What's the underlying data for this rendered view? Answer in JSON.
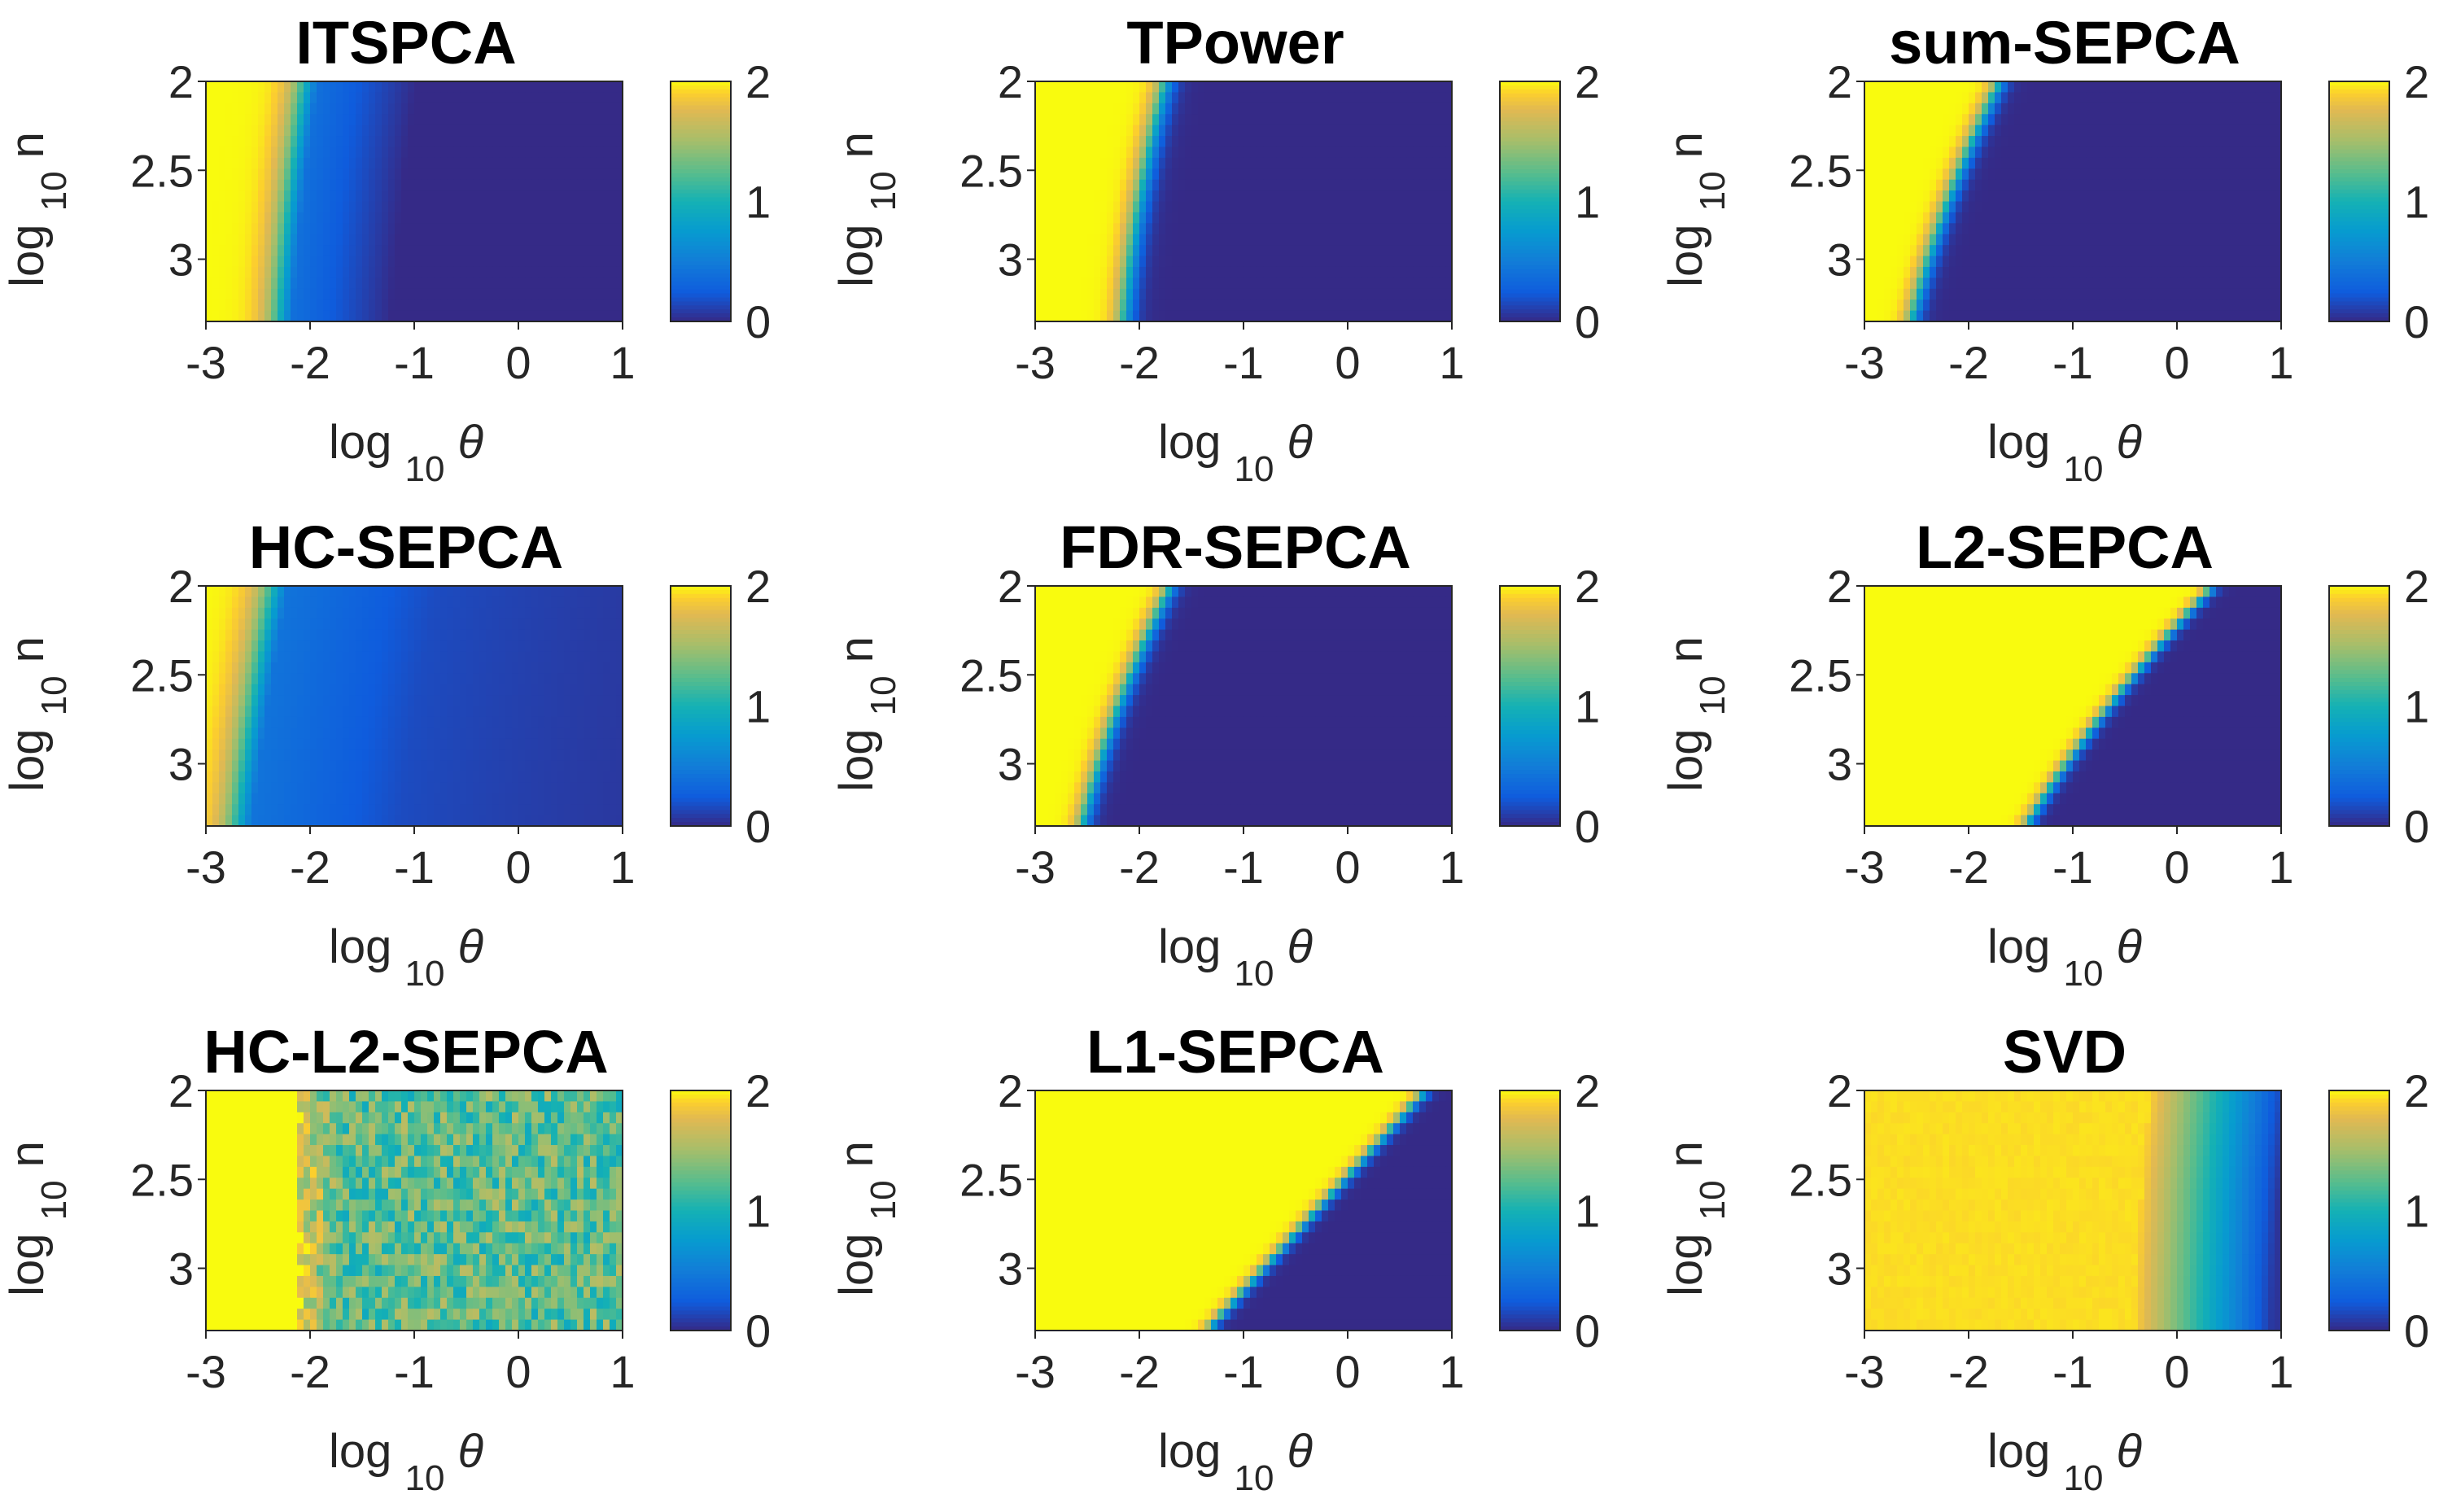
{
  "chart_data": [
    {
      "type": "heatmap",
      "title": "ITSPCA",
      "profile": "smooth",
      "boundary": [
        -2.3,
        -2.2,
        -2.05
      ],
      "transition_width": 0.3,
      "blue_tail": 0.4,
      "xlabel": "log 10 θ",
      "ylabel": "log 10 n",
      "xticks": [
        "-3",
        "-2",
        "-1",
        "0",
        "1"
      ],
      "xlim": [
        -3,
        1
      ],
      "yticks": [
        "2",
        "2.5",
        "3"
      ],
      "ylim": [
        2,
        3.35
      ],
      "colorbar": {
        "ticks": [
          "0",
          "1",
          "2"
        ],
        "range": [
          0,
          2
        ],
        "colormap": "parula"
      }
    },
    {
      "type": "heatmap",
      "title": "TPower",
      "profile": "sharp",
      "boundary": [
        -2.15,
        -2.0,
        -1.75
      ],
      "transition_width": 0.18,
      "xlabel": "log 10 θ",
      "ylabel": "log 10 n",
      "xticks": [
        "-3",
        "-2",
        "-1",
        "0",
        "1"
      ],
      "xlim": [
        -3,
        1
      ],
      "yticks": [
        "2",
        "2.5",
        "3"
      ],
      "ylim": [
        2,
        3.35
      ],
      "colorbar": {
        "ticks": [
          "0",
          "1",
          "2"
        ],
        "range": [
          0,
          2
        ],
        "colormap": "parula"
      }
    },
    {
      "type": "heatmap",
      "title": "sum-SEPCA",
      "profile": "sharp",
      "boundary": [
        -2.55,
        -2.2,
        -1.7
      ],
      "transition_width": 0.15,
      "xlabel": "log 10 θ",
      "ylabel": "log 10 n",
      "xticks": [
        "-3",
        "-2",
        "-1",
        "0",
        "1"
      ],
      "xlim": [
        -3,
        1
      ],
      "yticks": [
        "2",
        "2.5",
        "3"
      ],
      "ylim": [
        2,
        3.35
      ],
      "colorbar": {
        "ticks": [
          "0",
          "1",
          "2"
        ],
        "range": [
          0,
          2
        ],
        "colormap": "parula"
      }
    },
    {
      "type": "heatmap",
      "title": "HC-SEPCA",
      "profile": "hc",
      "boundary": [
        -2.7,
        -2.55,
        -2.35
      ],
      "transition_width": 0.35,
      "blue_tail": 0.9,
      "xlabel": "log 10 θ",
      "ylabel": "log 10 n",
      "xticks": [
        "-3",
        "-2",
        "-1",
        "0",
        "1"
      ],
      "xlim": [
        -3,
        1
      ],
      "yticks": [
        "2",
        "2.5",
        "3"
      ],
      "ylim": [
        2,
        3.35
      ],
      "colorbar": {
        "ticks": [
          "0",
          "1",
          "2"
        ],
        "range": [
          0,
          2
        ],
        "colormap": "parula"
      }
    },
    {
      "type": "heatmap",
      "title": "FDR-SEPCA",
      "profile": "sharp",
      "boundary": [
        -2.55,
        -2.2,
        -1.7
      ],
      "transition_width": 0.15,
      "xlabel": "log 10 θ",
      "ylabel": "log 10 n",
      "xticks": [
        "-3",
        "-2",
        "-1",
        "0",
        "1"
      ],
      "xlim": [
        -3,
        1
      ],
      "yticks": [
        "2",
        "2.5",
        "3"
      ],
      "ylim": [
        2,
        3.35
      ],
      "colorbar": {
        "ticks": [
          "0",
          "1",
          "2"
        ],
        "range": [
          0,
          2
        ],
        "colormap": "parula"
      }
    },
    {
      "type": "heatmap",
      "title": "L2-SEPCA",
      "profile": "sharp",
      "boundary": [
        -1.45,
        -0.65,
        0.35
      ],
      "transition_width": 0.12,
      "xlabel": "log 10 θ",
      "ylabel": "log 10 n",
      "xticks": [
        "-3",
        "-2",
        "-1",
        "0",
        "1"
      ],
      "xlim": [
        -3,
        1
      ],
      "yticks": [
        "2",
        "2.5",
        "3"
      ],
      "ylim": [
        2,
        3.35
      ],
      "colorbar": {
        "ticks": [
          "0",
          "1",
          "2"
        ],
        "range": [
          0,
          2
        ],
        "colormap": "parula"
      }
    },
    {
      "type": "heatmap",
      "title": "HC-L2-SEPCA",
      "profile": "noisy",
      "boundary": [
        -2.15,
        -2.15,
        -2.15
      ],
      "transition_width": 0.3,
      "xlabel": "log 10 θ",
      "ylabel": "log 10 n",
      "xticks": [
        "-3",
        "-2",
        "-1",
        "0",
        "1"
      ],
      "xlim": [
        -3,
        1
      ],
      "yticks": [
        "2",
        "2.5",
        "3"
      ],
      "ylim": [
        2,
        3.35
      ],
      "colorbar": {
        "ticks": [
          "0",
          "1",
          "2"
        ],
        "range": [
          0,
          2
        ],
        "colormap": "parula"
      }
    },
    {
      "type": "heatmap",
      "title": "L1-SEPCA",
      "profile": "l1",
      "boundary": [
        -1.35,
        -0.3,
        0.75
      ],
      "transition_width": 0.12,
      "xlabel": "log 10 θ",
      "ylabel": "log 10 n",
      "xticks": [
        "-3",
        "-2",
        "-1",
        "0",
        "1"
      ],
      "xlim": [
        -3,
        1
      ],
      "yticks": [
        "2",
        "2.5",
        "3"
      ],
      "ylim": [
        2,
        3.35
      ],
      "colorbar": {
        "ticks": [
          "0",
          "1",
          "2"
        ],
        "range": [
          0,
          2
        ],
        "colormap": "parula"
      }
    },
    {
      "type": "heatmap",
      "title": "SVD",
      "profile": "svd",
      "boundary": [
        -0.4,
        -0.35,
        -0.25
      ],
      "transition_width": 0.3,
      "xlabel": "log 10 θ",
      "ylabel": "log 10 n",
      "xticks": [
        "-3",
        "-2",
        "-1",
        "0",
        "1"
      ],
      "xlim": [
        -3,
        1
      ],
      "yticks": [
        "2",
        "2.5",
        "3"
      ],
      "ylim": [
        2,
        3.35
      ],
      "colorbar": {
        "ticks": [
          "0",
          "1",
          "2"
        ],
        "range": [
          0,
          2
        ],
        "colormap": "parula"
      }
    }
  ]
}
